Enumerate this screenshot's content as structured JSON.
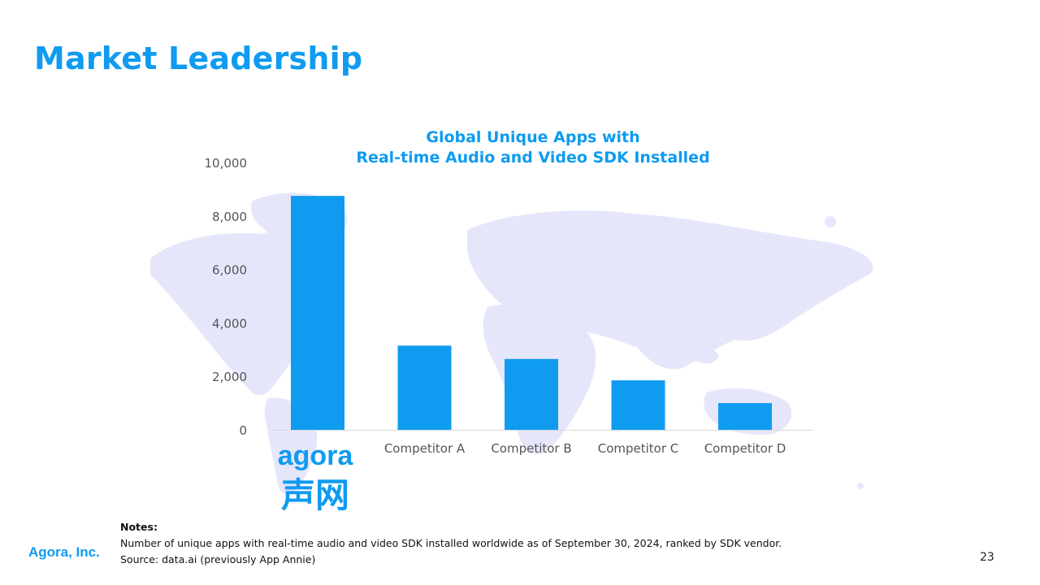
{
  "slide": {
    "title": "Market Leadership",
    "page_number": "23",
    "company": "Agora, Inc."
  },
  "notes": {
    "heading": "Notes:",
    "line1": "Number of unique apps with real-time audio and video SDK installed worldwide as of September 30, 2024, ranked by SDK vendor.",
    "line2": "Source: data.ai (previously App Annie)"
  },
  "logo": {
    "latin": "agora",
    "chinese": "声网"
  },
  "colors": {
    "accent": "#0f9bf0",
    "bar": "#0f9bf0",
    "map": "#e6e6fb",
    "axis_text": "#555555"
  },
  "chart_data": {
    "type": "bar",
    "title_line1": "Global Unique Apps with",
    "title_line2": "Real-time Audio and Video SDK Installed",
    "categories": [
      "agora 声网",
      "Competitor A",
      "Competitor B",
      "Competitor C",
      "Competitor D"
    ],
    "values": [
      8750,
      3150,
      2650,
      1850,
      1000
    ],
    "ylim": [
      0,
      10000
    ],
    "yticks": [
      0,
      2000,
      4000,
      6000,
      8000,
      10000
    ],
    "ytick_labels": [
      "0",
      "2,000",
      "4,000",
      "6,000",
      "8,000",
      "10,000"
    ],
    "xlabel": "",
    "ylabel": "",
    "grid": false,
    "legend": "none"
  }
}
